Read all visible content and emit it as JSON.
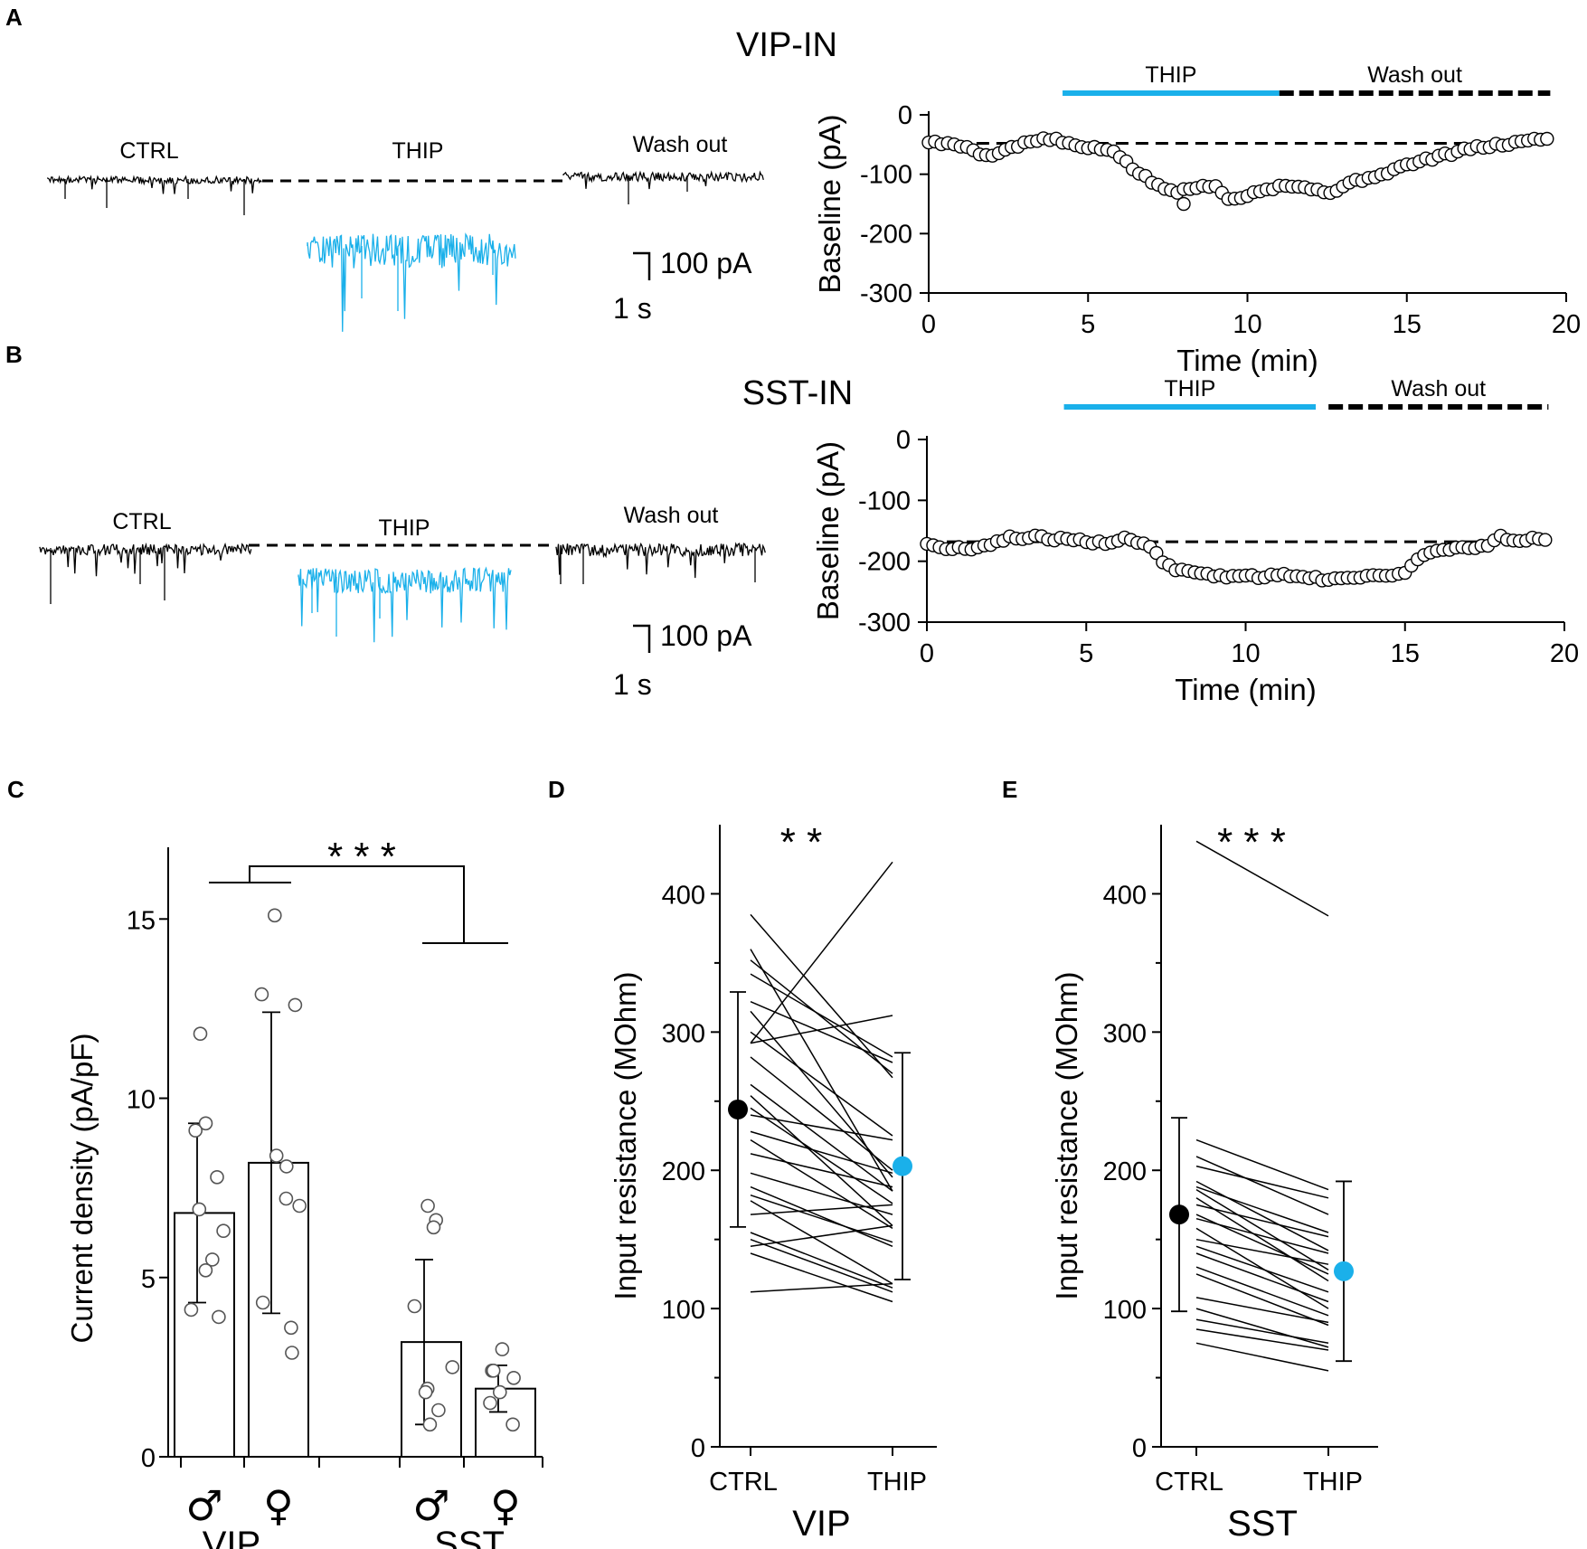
{
  "panel_labels": {
    "a": "A",
    "b": "B",
    "c": "C",
    "d": "D",
    "e": "E"
  },
  "colors": {
    "thip": "#1ab0ea",
    "ctrl": "#000000"
  },
  "trace_panels": [
    {
      "title": "VIP-IN",
      "ctrl": "CTRL",
      "thip": "THIP",
      "washout": "Wash out",
      "scale_current": "100 pA",
      "scale_time": "1 s"
    },
    {
      "title": "SST-IN",
      "ctrl": "CTRL",
      "thip": "THIP",
      "washout": "Wash out",
      "scale_current": "100 pA",
      "scale_time": "1 s"
    }
  ],
  "chart_data": [
    {
      "id": "A-right",
      "type": "scatter",
      "xlabel": "Time (min)",
      "ylabel": "Baseline (pA)",
      "xlim": [
        0,
        20
      ],
      "ylim": [
        -300,
        0
      ],
      "xticks": [
        "0",
        "5",
        "10",
        "15",
        "20"
      ],
      "yticks": [
        "0",
        "-100",
        "-200",
        "-300"
      ],
      "bar_thip_label": "THIP",
      "bar_thip_range": [
        4.2,
        11.0
      ],
      "bar_wash_label": "Wash out",
      "bar_wash_range": [
        11.0,
        19.5
      ],
      "baseline_level": -48,
      "baseline_range": [
        1.5,
        17.0
      ],
      "keypoints": [
        [
          0,
          -45
        ],
        [
          1.3,
          -55
        ],
        [
          1.8,
          -70
        ],
        [
          2.6,
          -55
        ],
        [
          3.2,
          -45
        ],
        [
          3.8,
          -40
        ],
        [
          4.8,
          -55
        ],
        [
          5.8,
          -60
        ],
        [
          6.5,
          -95
        ],
        [
          7.2,
          -120
        ],
        [
          7.8,
          -130
        ],
        [
          8.6,
          -120
        ],
        [
          9.0,
          -118
        ],
        [
          9.5,
          -145
        ],
        [
          10.3,
          -128
        ],
        [
          11.2,
          -118
        ],
        [
          12.0,
          -125
        ],
        [
          12.6,
          -130
        ],
        [
          13.4,
          -112
        ],
        [
          14.2,
          -100
        ],
        [
          15.0,
          -85
        ],
        [
          16.0,
          -70
        ],
        [
          17.0,
          -57
        ],
        [
          18.0,
          -50
        ],
        [
          19.0,
          -42
        ],
        [
          19.4,
          -38
        ]
      ],
      "outliers": [
        [
          8.0,
          -150
        ]
      ]
    },
    {
      "id": "B-right",
      "type": "scatter",
      "xlabel": "Time (min)",
      "ylabel": "Baseline (pA)",
      "xlim": [
        0,
        20
      ],
      "ylim": [
        -300,
        0
      ],
      "xticks": [
        "0",
        "5",
        "10",
        "15",
        "20"
      ],
      "yticks": [
        "0",
        "-100",
        "-200",
        "-300"
      ],
      "bar_thip_label": "THIP",
      "bar_thip_range": [
        4.3,
        12.2
      ],
      "bar_wash_label": "Wash out",
      "bar_wash_range": [
        12.6,
        19.5
      ],
      "baseline_level": -168,
      "baseline_range": [
        0,
        19.5
      ],
      "keypoints": [
        [
          0,
          -170
        ],
        [
          0.5,
          -180
        ],
        [
          1.5,
          -178
        ],
        [
          2.6,
          -162
        ],
        [
          3.4,
          -160
        ],
        [
          4.4,
          -165
        ],
        [
          5.5,
          -170
        ],
        [
          6.2,
          -163
        ],
        [
          6.9,
          -172
        ],
        [
          7.3,
          -195
        ],
        [
          7.8,
          -215
        ],
        [
          8.5,
          -220
        ],
        [
          9.5,
          -225
        ],
        [
          10.5,
          -225
        ],
        [
          11.5,
          -222
        ],
        [
          12.5,
          -230
        ],
        [
          13.5,
          -225
        ],
        [
          14.5,
          -222
        ],
        [
          15.0,
          -220
        ],
        [
          15.3,
          -200
        ],
        [
          15.8,
          -185
        ],
        [
          16.6,
          -178
        ],
        [
          17.2,
          -180
        ],
        [
          17.6,
          -172
        ],
        [
          18.0,
          -160
        ],
        [
          18.5,
          -170
        ],
        [
          19.0,
          -162
        ],
        [
          19.4,
          -168
        ]
      ]
    },
    {
      "id": "C",
      "type": "bar",
      "ylabel": "Current density (pA/pF)",
      "ylim": [
        0,
        17
      ],
      "yticks": [
        "0",
        "5",
        "10",
        "15"
      ],
      "groups": [
        "VIP",
        "SST"
      ],
      "bar_symbols": [
        "♂",
        "♀",
        "♂",
        "♀"
      ],
      "values": [
        6.8,
        8.2,
        3.2,
        1.9
      ],
      "errors": [
        2.5,
        4.2,
        2.3,
        0.65
      ],
      "points": [
        [
          11.8,
          9.3,
          9.1,
          7.8,
          6.9,
          6.3,
          5.5,
          5.2,
          4.1,
          3.9
        ],
        [
          15.1,
          12.9,
          12.6,
          8.4,
          8.1,
          7.2,
          7.0,
          4.3,
          3.6,
          2.9
        ],
        [
          7.0,
          6.6,
          6.4,
          4.2,
          2.5,
          1.9,
          1.8,
          1.3,
          0.9
        ],
        [
          3.0,
          2.4,
          2.4,
          2.2,
          1.8,
          1.5,
          0.9
        ]
      ],
      "significance": "* * *"
    },
    {
      "id": "D",
      "type": "line",
      "ylabel": "Input resistance (MOhm)",
      "xlabel": "VIP",
      "categories": [
        "CTRL",
        "THIP"
      ],
      "ylim": [
        0,
        450
      ],
      "yticks": [
        "0",
        "100",
        "200",
        "300",
        "400"
      ],
      "mean": [
        244,
        203
      ],
      "sd": [
        85,
        82
      ],
      "pairs": [
        [
          385,
          267
        ],
        [
          360,
          185
        ],
        [
          352,
          270
        ],
        [
          342,
          282
        ],
        [
          322,
          278
        ],
        [
          315,
          195
        ],
        [
          300,
          225
        ],
        [
          292,
          312
        ],
        [
          292,
          423
        ],
        [
          282,
          200
        ],
        [
          262,
          185
        ],
        [
          254,
          160
        ],
        [
          245,
          176
        ],
        [
          240,
          222
        ],
        [
          228,
          198
        ],
        [
          222,
          158
        ],
        [
          212,
          188
        ],
        [
          198,
          168
        ],
        [
          188,
          145
        ],
        [
          182,
          148
        ],
        [
          178,
          118
        ],
        [
          168,
          175
        ],
        [
          155,
          115
        ],
        [
          150,
          112
        ],
        [
          145,
          160
        ],
        [
          140,
          105
        ],
        [
          112,
          118
        ]
      ],
      "significance": "* *"
    },
    {
      "id": "E",
      "type": "line",
      "ylabel": "Input resistance (MOhm)",
      "xlabel": "SST",
      "categories": [
        "CTRL",
        "THIP"
      ],
      "ylim": [
        0,
        450
      ],
      "yticks": [
        "0",
        "100",
        "200",
        "300",
        "400"
      ],
      "mean": [
        168,
        127
      ],
      "sd": [
        70,
        65
      ],
      "pairs": [
        [
          438,
          384
        ],
        [
          222,
          186
        ],
        [
          210,
          168
        ],
        [
          203,
          180
        ],
        [
          192,
          142
        ],
        [
          188,
          155
        ],
        [
          186,
          128
        ],
        [
          180,
          120
        ],
        [
          175,
          152
        ],
        [
          168,
          125
        ],
        [
          165,
          140
        ],
        [
          158,
          100
        ],
        [
          150,
          132
        ],
        [
          145,
          112
        ],
        [
          140,
          105
        ],
        [
          130,
          95
        ],
        [
          125,
          88
        ],
        [
          108,
          90
        ],
        [
          100,
          72
        ],
        [
          92,
          75
        ],
        [
          85,
          70
        ],
        [
          75,
          55
        ]
      ],
      "significance": "* * *"
    }
  ]
}
